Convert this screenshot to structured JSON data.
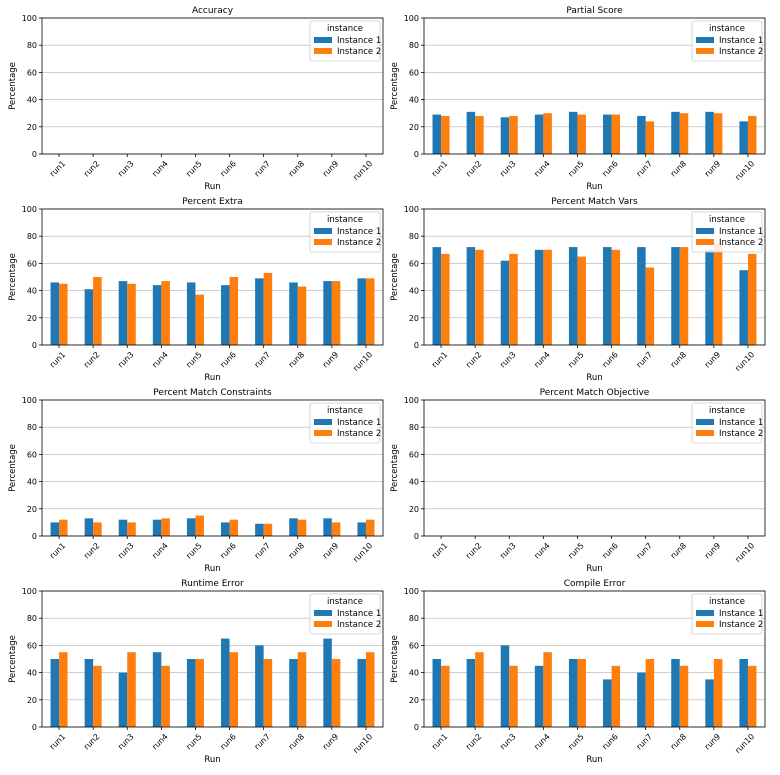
{
  "colors": {
    "instance1": "#1f77b4",
    "instance2": "#ff7f0e",
    "grid": "#b0b0b0"
  },
  "chart_data": [
    {
      "type": "bar",
      "title": "Accuracy",
      "xlabel": "Run",
      "ylabel": "Percentage",
      "ylim": [
        0,
        100
      ],
      "yticks": [
        "0",
        "20",
        "40",
        "60",
        "80",
        "100"
      ],
      "categories": [
        "run1",
        "run2",
        "run3",
        "run4",
        "run5",
        "run6",
        "run7",
        "run8",
        "run9",
        "run10"
      ],
      "legend": {
        "title": "instance",
        "position": "top-right"
      },
      "series": [
        {
          "name": "Instance 1",
          "values": [
            0,
            0,
            0,
            0,
            0,
            0,
            0,
            0,
            0,
            0
          ]
        },
        {
          "name": "Instance 2",
          "values": [
            0,
            0,
            0,
            0,
            0,
            0,
            0,
            0,
            0,
            0
          ]
        }
      ]
    },
    {
      "type": "bar",
      "title": "Partial Score",
      "xlabel": "Run",
      "ylabel": "Percentage",
      "ylim": [
        0,
        100
      ],
      "yticks": [
        "0",
        "20",
        "40",
        "60",
        "80",
        "100"
      ],
      "categories": [
        "run1",
        "run2",
        "run3",
        "run4",
        "run5",
        "run6",
        "run7",
        "run8",
        "run9",
        "run10"
      ],
      "legend": {
        "title": "instance",
        "position": "top-right"
      },
      "series": [
        {
          "name": "Instance 1",
          "values": [
            29,
            31,
            27,
            29,
            31,
            29,
            28,
            31,
            31,
            24
          ]
        },
        {
          "name": "Instance 2",
          "values": [
            28,
            28,
            28,
            30,
            29,
            29,
            24,
            30,
            30,
            28
          ]
        }
      ]
    },
    {
      "type": "bar",
      "title": "Percent Extra",
      "xlabel": "Run",
      "ylabel": "Percentage",
      "ylim": [
        0,
        100
      ],
      "yticks": [
        "0",
        "20",
        "40",
        "60",
        "80",
        "100"
      ],
      "categories": [
        "run1",
        "run2",
        "run3",
        "run4",
        "run5",
        "run6",
        "run7",
        "run8",
        "run9",
        "run10"
      ],
      "legend": {
        "title": "instance",
        "position": "top-right"
      },
      "series": [
        {
          "name": "Instance 1",
          "values": [
            46,
            41,
            47,
            44,
            46,
            44,
            49,
            46,
            47,
            49
          ]
        },
        {
          "name": "Instance 2",
          "values": [
            45,
            50,
            45,
            47,
            37,
            50,
            53,
            43,
            47,
            49
          ]
        }
      ]
    },
    {
      "type": "bar",
      "title": "Percent Match Vars",
      "xlabel": "Run",
      "ylabel": "Percentage",
      "ylim": [
        0,
        100
      ],
      "yticks": [
        "0",
        "20",
        "40",
        "60",
        "80",
        "100"
      ],
      "categories": [
        "run1",
        "run2",
        "run3",
        "run4",
        "run5",
        "run6",
        "run7",
        "run8",
        "run9",
        "run10"
      ],
      "legend": {
        "title": "instance",
        "position": "top-right"
      },
      "series": [
        {
          "name": "Instance 1",
          "values": [
            72,
            72,
            62,
            70,
            72,
            72,
            72,
            72,
            70,
            55
          ]
        },
        {
          "name": "Instance 2",
          "values": [
            67,
            70,
            67,
            70,
            65,
            70,
            57,
            72,
            75,
            67
          ]
        }
      ]
    },
    {
      "type": "bar",
      "title": "Percent Match Constraints",
      "xlabel": "Run",
      "ylabel": "Percentage",
      "ylim": [
        0,
        100
      ],
      "yticks": [
        "0",
        "20",
        "40",
        "60",
        "80",
        "100"
      ],
      "categories": [
        "run1",
        "run2",
        "run3",
        "run4",
        "run5",
        "run6",
        "run7",
        "run8",
        "run9",
        "run10"
      ],
      "legend": {
        "title": "instance",
        "position": "top-right"
      },
      "series": [
        {
          "name": "Instance 1",
          "values": [
            10,
            13,
            12,
            12,
            13,
            10,
            9,
            13,
            13,
            10
          ]
        },
        {
          "name": "Instance 2",
          "values": [
            12,
            10,
            10,
            13,
            15,
            12,
            9,
            12,
            10,
            12
          ]
        }
      ]
    },
    {
      "type": "bar",
      "title": "Percent Match Objective",
      "xlabel": "Run",
      "ylabel": "Percentage",
      "ylim": [
        0,
        100
      ],
      "yticks": [
        "0",
        "20",
        "40",
        "60",
        "80",
        "100"
      ],
      "categories": [
        "run1",
        "run2",
        "run3",
        "run4",
        "run5",
        "run6",
        "run7",
        "run8",
        "run9",
        "run10"
      ],
      "legend": {
        "title": "instance",
        "position": "top-right"
      },
      "series": [
        {
          "name": "Instance 1",
          "values": [
            0,
            0,
            0,
            0,
            0,
            0,
            0,
            0,
            0,
            0
          ]
        },
        {
          "name": "Instance 2",
          "values": [
            0,
            0,
            0,
            0,
            0,
            0,
            0,
            0,
            0,
            0
          ]
        }
      ]
    },
    {
      "type": "bar",
      "title": "Runtime Error",
      "xlabel": "Run",
      "ylabel": "Percentage",
      "ylim": [
        0,
        100
      ],
      "yticks": [
        "0",
        "20",
        "40",
        "60",
        "80",
        "100"
      ],
      "categories": [
        "run1",
        "run2",
        "run3",
        "run4",
        "run5",
        "run6",
        "run7",
        "run8",
        "run9",
        "run10"
      ],
      "legend": {
        "title": "instance",
        "position": "top-right"
      },
      "series": [
        {
          "name": "Instance 1",
          "values": [
            50,
            50,
            40,
            55,
            50,
            65,
            60,
            50,
            65,
            50
          ]
        },
        {
          "name": "Instance 2",
          "values": [
            55,
            45,
            55,
            45,
            50,
            55,
            50,
            55,
            50,
            55
          ]
        }
      ]
    },
    {
      "type": "bar",
      "title": "Compile Error",
      "xlabel": "Run",
      "ylabel": "Percentage",
      "ylim": [
        0,
        100
      ],
      "yticks": [
        "0",
        "20",
        "40",
        "60",
        "80",
        "100"
      ],
      "categories": [
        "run1",
        "run2",
        "run3",
        "run4",
        "run5",
        "run6",
        "run7",
        "run8",
        "run9",
        "run10"
      ],
      "legend": {
        "title": "instance",
        "position": "top-right"
      },
      "series": [
        {
          "name": "Instance 1",
          "values": [
            50,
            50,
            60,
            45,
            50,
            35,
            40,
            50,
            35,
            50
          ]
        },
        {
          "name": "Instance 2",
          "values": [
            45,
            55,
            45,
            55,
            50,
            45,
            50,
            45,
            50,
            45
          ]
        }
      ]
    }
  ]
}
